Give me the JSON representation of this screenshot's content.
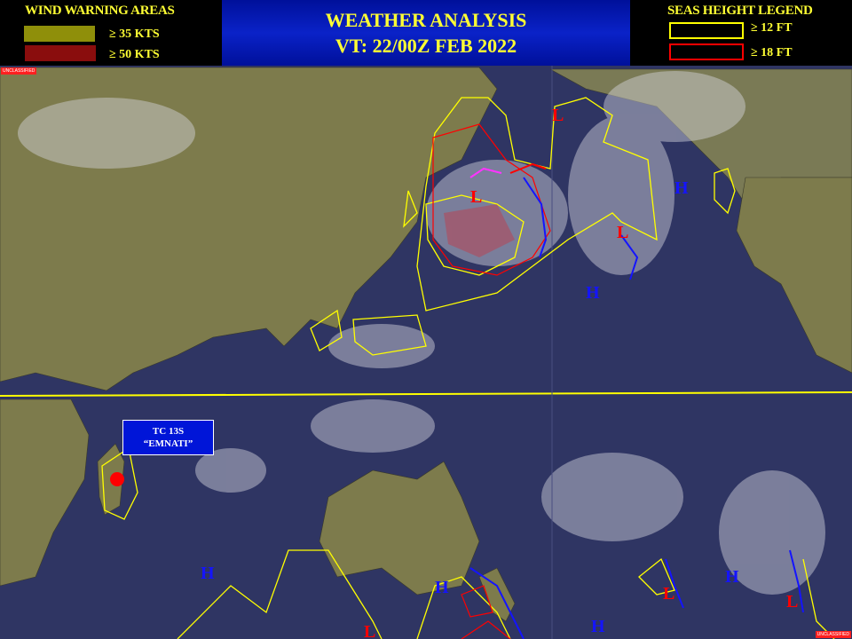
{
  "header": {
    "title": "WEATHER ANALYSIS",
    "valid_time": "VT: 22/00Z FEB 2022"
  },
  "wind_legend": {
    "title": "WIND WARNING AREAS",
    "items": [
      {
        "label": "≥ 35 KTS",
        "color": "#8f8f0a"
      },
      {
        "label": "≥ 50 KTS",
        "color": "#8a0d0d"
      }
    ]
  },
  "seas_legend": {
    "title": "SEAS HEIGHT  LEGEND",
    "items": [
      {
        "label": "≥ 12 FT",
        "color": "#ffff00"
      },
      {
        "label": "≥ 18 FT",
        "color": "#ff0000"
      }
    ]
  },
  "classification": "UNCLASSIFIED",
  "tropical_cyclone": {
    "line1": "TC 13S",
    "line2": "“EMNATI”"
  },
  "pressure_centers": {
    "high": "H",
    "low": "L",
    "high_color": "#1414ff",
    "low_color": "#ff0000"
  },
  "colors": {
    "ocean": "#2f3563",
    "land": "#7a7a4a",
    "seas_12ft": "#ffff00",
    "seas_18ft": "#ff0000",
    "cold_front": "#1414ff",
    "occluded_front": "#ff33ff",
    "equator_line": "#ffff00"
  }
}
